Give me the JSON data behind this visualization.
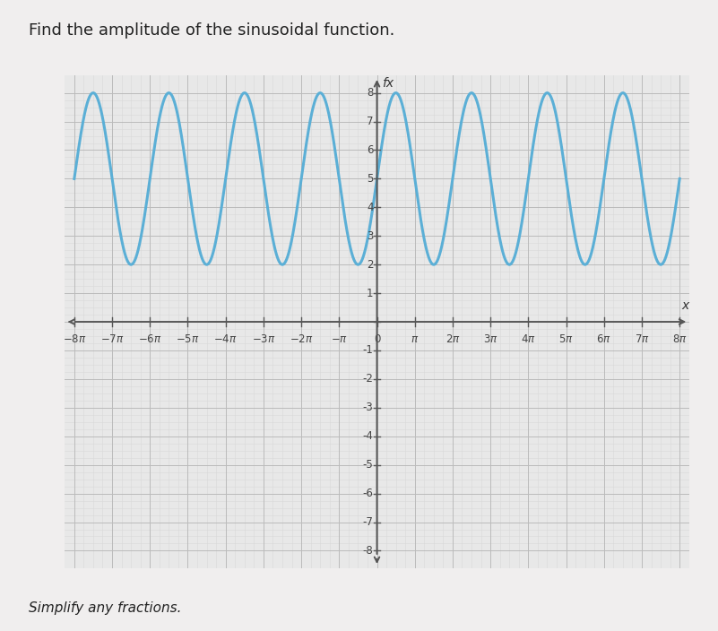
{
  "title": "Find the amplitude of the sinusoidal function.",
  "subtitle": "Simplify any fractions.",
  "ylabel": "fx",
  "xlabel": "x",
  "amplitude": 3,
  "vertical_shift": 5,
  "period": 6.283185307179586,
  "x_min": -8,
  "x_max": 8,
  "y_min": -8,
  "y_max": 8,
  "x_ticks": [
    -8,
    -7,
    -6,
    -5,
    -4,
    -3,
    -2,
    -1,
    0,
    1,
    2,
    3,
    4,
    5,
    6,
    7,
    8
  ],
  "y_ticks": [
    -8,
    -7,
    -6,
    -5,
    -4,
    -3,
    -2,
    -1,
    0,
    1,
    2,
    3,
    4,
    5,
    6,
    7,
    8
  ],
  "line_color": "#5BAFD6",
  "line_width": 2.2,
  "grid_major_color": "#bbbbbb",
  "grid_minor_color": "#d8d8d8",
  "axis_color": "#555555",
  "bg_color": "#e8e8e8",
  "fig_bg_color": "#f0eeee",
  "title_fontsize": 13,
  "subtitle_fontsize": 11,
  "tick_fontsize": 8.5,
  "minor_ticks_per_major": 4
}
